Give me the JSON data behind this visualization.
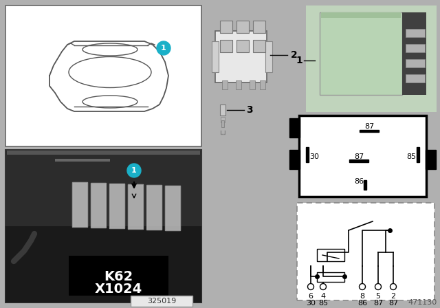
{
  "bg_color": "#b0b0b0",
  "white": "#ffffff",
  "black": "#000000",
  "circle_color": "#1ab0c8",
  "relay_green": "#b8d4b0",
  "relay_green2": "#a8c8a0",
  "gray_photo": "#404040",
  "gray_mid": "#888888",
  "gray_light": "#cccccc",
  "gray_dark": "#222222",
  "doc_number": "471130",
  "ref_number": "325019",
  "label1": "K62",
  "label2": "X1024",
  "pin_top": [
    "6",
    "4",
    "8",
    "5",
    "2"
  ],
  "pin_bot": [
    "30",
    "85",
    "86",
    "87",
    "87"
  ],
  "relay_pins": [
    "87",
    "30",
    "87",
    "85",
    "86"
  ],
  "figw": 6.4,
  "figh": 4.48,
  "dpi": 100
}
